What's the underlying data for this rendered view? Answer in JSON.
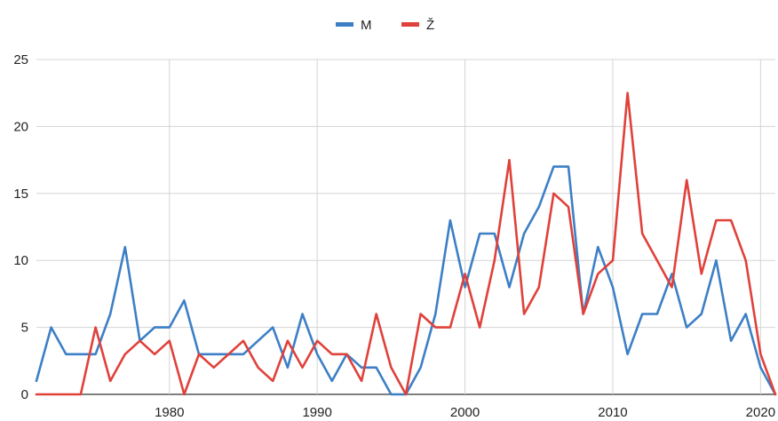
{
  "chart_data": {
    "type": "line",
    "title": "",
    "xlabel": "",
    "ylabel": "",
    "xlim": [
      1971,
      2021
    ],
    "ylim": [
      0,
      25
    ],
    "x_ticks": [
      1980,
      1990,
      2000,
      2010,
      2020
    ],
    "y_ticks": [
      0,
      5,
      10,
      15,
      20,
      25
    ],
    "grid": true,
    "legend_position": "top-center",
    "x": [
      1971,
      1972,
      1973,
      1974,
      1975,
      1976,
      1977,
      1978,
      1979,
      1980,
      1981,
      1982,
      1983,
      1984,
      1985,
      1986,
      1987,
      1988,
      1989,
      1990,
      1991,
      1992,
      1993,
      1994,
      1995,
      1996,
      1997,
      1998,
      1999,
      2000,
      2001,
      2002,
      2003,
      2004,
      2005,
      2006,
      2007,
      2008,
      2009,
      2010,
      2011,
      2012,
      2013,
      2014,
      2015,
      2016,
      2017,
      2018,
      2019,
      2020,
      2021
    ],
    "series": [
      {
        "name": "M",
        "color": "#3d7fc6",
        "values": [
          1,
          5,
          3,
          3,
          3,
          6,
          11,
          4,
          5,
          5,
          7,
          3,
          3,
          3,
          3,
          4,
          5,
          2,
          6,
          3,
          1,
          3,
          2,
          2,
          0,
          0,
          2,
          6,
          13,
          8,
          12,
          12,
          8,
          12,
          14,
          17,
          17,
          6,
          11,
          8,
          3,
          6,
          6,
          9,
          5,
          6,
          10,
          4,
          6,
          2,
          0
        ]
      },
      {
        "name": "Ž",
        "color": "#e0413a",
        "values": [
          0,
          0,
          0,
          0,
          5,
          1,
          3,
          4,
          3,
          4,
          0,
          3,
          2,
          3,
          4,
          2,
          1,
          4,
          2,
          4,
          3,
          3,
          1,
          6,
          2,
          0,
          6,
          5,
          5,
          9,
          5,
          10,
          17.5,
          6,
          8,
          15,
          14,
          6,
          9,
          10,
          22.5,
          12,
          10,
          8,
          16,
          9,
          13,
          13,
          10,
          3,
          0
        ]
      }
    ]
  }
}
